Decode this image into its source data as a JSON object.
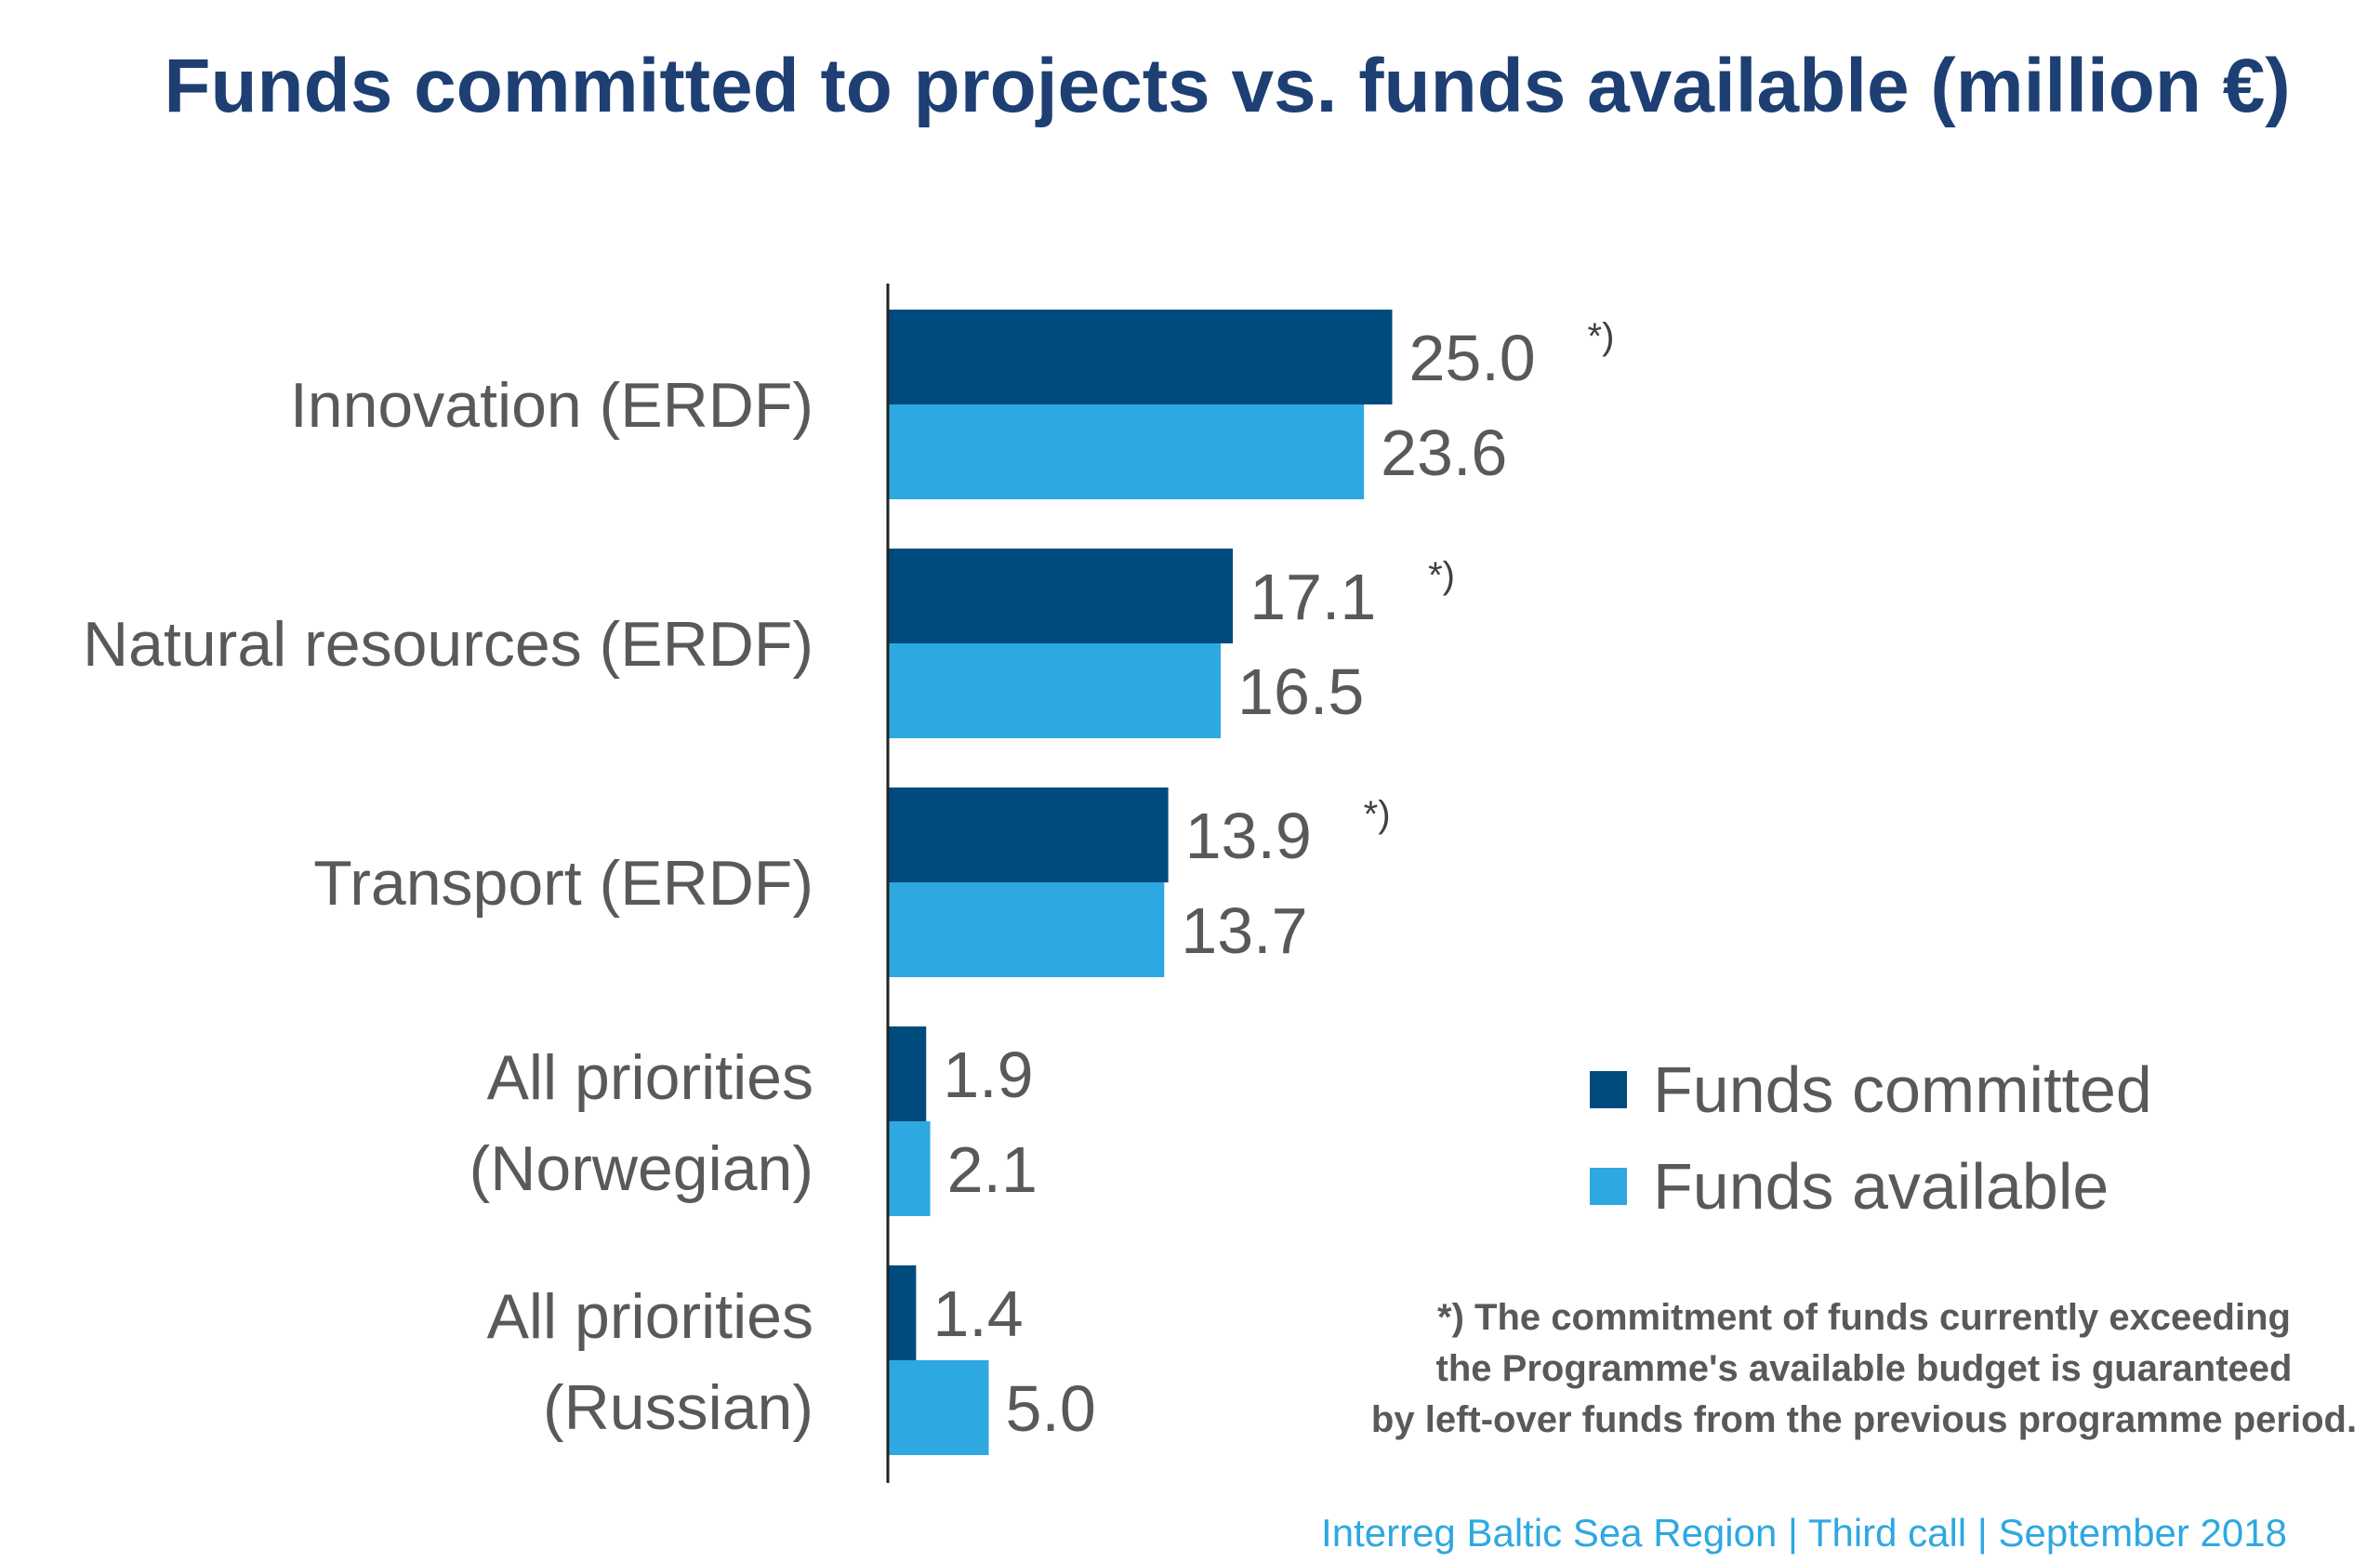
{
  "chart_data": {
    "type": "bar",
    "orientation": "horizontal",
    "title": "Funds committed to projects vs. funds available (million €)",
    "categories": [
      [
        "Innovation (ERDF)"
      ],
      [
        "Natural resources (ERDF)"
      ],
      [
        "Transport (ERDF)"
      ],
      [
        "All priorities",
        "(Norwegian)"
      ],
      [
        "All priorities",
        "(Russian)"
      ]
    ],
    "series": [
      {
        "name": "Funds committed",
        "color": "#004b7d",
        "values": [
          25.0,
          17.1,
          13.9,
          1.9,
          1.4
        ]
      },
      {
        "name": "Funds available",
        "color": "#2ea8e0",
        "values": [
          23.6,
          16.5,
          13.7,
          2.1,
          5.0
        ]
      }
    ],
    "value_labels": [
      [
        "25.0",
        "17.1",
        "13.9",
        "1.9",
        "1.4"
      ],
      [
        "23.6",
        "16.5",
        "13.7",
        "2.1",
        "5.0"
      ]
    ],
    "annotation_marker": "*)",
    "annotated_categories": [
      0,
      1,
      2
    ],
    "legend_position": "right",
    "grid": false,
    "xlim": [
      0,
      25
    ],
    "footnote": [
      "*) The commitment of funds currently exceeding",
      "the Programme's available budget is guaranteed",
      "by left-over funds from the previous programme period."
    ],
    "source": "Interreg Baltic Sea Region | Third call | September 2018"
  }
}
